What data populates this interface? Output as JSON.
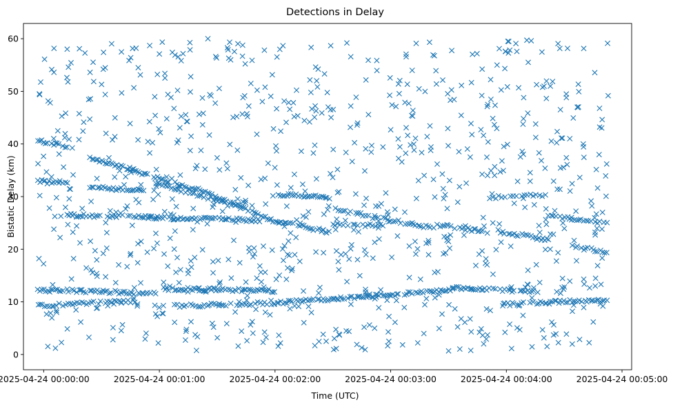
{
  "chart_data": {
    "type": "scatter",
    "title": "Detections in Delay",
    "xlabel": "Time (UTC)",
    "ylabel": "Bistatic Delay (km)",
    "marker": "x",
    "color": "#1f77b4",
    "xlim_seconds": [
      -10.5,
      305
    ],
    "ylim": [
      -2.9,
      62.9
    ],
    "x_ticks": [
      {
        "value": 0,
        "label": "2025-04-24 00:00:00"
      },
      {
        "value": 60,
        "label": "2025-04-24 00:01:00"
      },
      {
        "value": 120,
        "label": "2025-04-24 00:02:00"
      },
      {
        "value": 180,
        "label": "2025-04-24 00:03:00"
      },
      {
        "value": 240,
        "label": "2025-04-24 00:04:00"
      },
      {
        "value": 300,
        "label": "2025-04-24 00:05:00"
      }
    ],
    "y_ticks": [
      {
        "value": 0,
        "label": "0"
      },
      {
        "value": 10,
        "label": "10"
      },
      {
        "value": 20,
        "label": "20"
      },
      {
        "value": 30,
        "label": "30"
      },
      {
        "value": 40,
        "label": "40"
      },
      {
        "value": 50,
        "label": "50"
      },
      {
        "value": 60,
        "label": "60"
      }
    ],
    "time_range_seconds": [
      -3,
      293
    ],
    "tracks": [
      {
        "t_start": -3,
        "t_end": 12,
        "delay_start": 40.6,
        "delay_end": 39.5,
        "step": 1
      },
      {
        "t_start": -3,
        "t_end": 12,
        "delay_start": 33.0,
        "delay_end": 32.4,
        "step": 1
      },
      {
        "t_start": 24,
        "t_end": 77,
        "delay_start": 37.4,
        "delay_end": 31.5,
        "step": 1
      },
      {
        "t_start": 24,
        "t_end": 52,
        "delay_start": 31.8,
        "delay_end": 31.2,
        "step": 1
      },
      {
        "t_start": 58,
        "t_end": 102,
        "delay_start": 32.5,
        "delay_end": 28.2,
        "step": 1.2
      },
      {
        "t_start": 77,
        "t_end": 122,
        "delay_start": 31.8,
        "delay_end": 25.0,
        "step": 1
      },
      {
        "t_start": 122,
        "t_end": 148,
        "delay_start": 30.4,
        "delay_end": 29.8,
        "step": 1
      },
      {
        "t_start": 122,
        "t_end": 148,
        "delay_start": 25.2,
        "delay_end": 23.3,
        "step": 1
      },
      {
        "t_start": 150,
        "t_end": 202,
        "delay_start": 27.6,
        "delay_end": 24.0,
        "step": 1.3
      },
      {
        "t_start": 12,
        "t_end": 112,
        "delay_start": 26.5,
        "delay_end": 25.5,
        "step": 1
      },
      {
        "t_start": 204,
        "t_end": 230,
        "delay_start": 24.7,
        "delay_end": 23.3,
        "step": 1
      },
      {
        "t_start": 230,
        "t_end": 260,
        "delay_start": 29.8,
        "delay_end": 30.3,
        "step": 1.5
      },
      {
        "t_start": 236,
        "t_end": 262,
        "delay_start": 23.4,
        "delay_end": 21.8,
        "step": 1
      },
      {
        "t_start": 262,
        "t_end": 292,
        "delay_start": 26.5,
        "delay_end": 24.8,
        "step": 1.2
      },
      {
        "t_start": 274,
        "t_end": 292,
        "delay_start": 20.5,
        "delay_end": 19.5,
        "step": 1
      },
      {
        "t_start": 150,
        "t_end": 176,
        "delay_start": 24.6,
        "delay_end": 24.6,
        "step": 1.3
      },
      {
        "t_start": -3,
        "t_end": 58,
        "delay_start": 12.3,
        "delay_end": 11.6,
        "step": 1
      },
      {
        "t_start": -3,
        "t_end": 48,
        "delay_start": 9.3,
        "delay_end": 10.2,
        "step": 1.2
      },
      {
        "t_start": 62,
        "t_end": 120,
        "delay_start": 12.5,
        "delay_end": 12.1,
        "step": 1
      },
      {
        "t_start": 68,
        "t_end": 120,
        "delay_start": 9.2,
        "delay_end": 9.8,
        "step": 1.2
      },
      {
        "t_start": 120,
        "t_end": 212,
        "delay_start": 9.8,
        "delay_end": 12.2,
        "step": 1
      },
      {
        "t_start": 212,
        "t_end": 256,
        "delay_start": 12.6,
        "delay_end": 12.0,
        "step": 1
      },
      {
        "t_start": 238,
        "t_end": 292,
        "delay_start": 9.5,
        "delay_end": 10.4,
        "step": 1
      }
    ],
    "scattered_points_count": 900,
    "scattered_delay_range": [
      0.5,
      60
    ]
  }
}
